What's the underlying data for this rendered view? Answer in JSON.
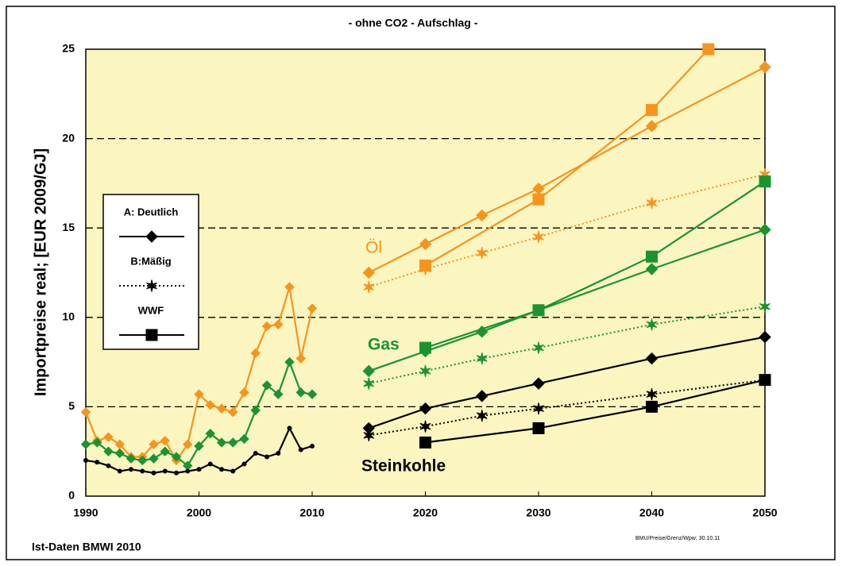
{
  "chart_data": {
    "type": "line",
    "title": "- ohne CO2 - Aufschlag -",
    "y_label": "Importpreise real; [EUR 2009/GJ]",
    "source": "Ist-Daten BMWI 2010",
    "footnote": "BMU/Preise/Grenz/Wpw; 30.10.11",
    "xlim": [
      1990,
      2050
    ],
    "ylim": [
      0,
      25
    ],
    "xticks": [
      1990,
      2000,
      2010,
      2020,
      2030,
      2040,
      2050
    ],
    "yticks": [
      0,
      5,
      10,
      15,
      20,
      25
    ],
    "grid": true,
    "background": "#fbf5c0",
    "legend": [
      {
        "label": "A: Deutlich",
        "dash": "solid",
        "marker": "diamond"
      },
      {
        "label": "B:Mäßig",
        "dash": "dotted",
        "marker": "star"
      },
      {
        "label": "WWF",
        "dash": "solid",
        "marker": "square"
      }
    ],
    "annotations": [
      {
        "text": "Öl",
        "color": "#f7941d"
      },
      {
        "text": "Gas",
        "color": "#1a9431"
      },
      {
        "text": "Steinkohle",
        "color": "#000000"
      }
    ],
    "series": [
      {
        "color": "#f7941d",
        "dash": "solid",
        "marker": "diamond-small",
        "x": [
          1990,
          1991,
          1992,
          1993,
          1994,
          1995,
          1996,
          1997,
          1998,
          1999,
          2000,
          2001,
          2002,
          2003,
          2004,
          2005,
          2006,
          2007,
          2008,
          2009,
          2010
        ],
        "values": [
          4.7,
          3.1,
          3.3,
          2.9,
          2.2,
          2.2,
          2.9,
          3.1,
          2.0,
          2.9,
          5.7,
          5.1,
          4.9,
          4.7,
          5.8,
          8.0,
          9.5,
          9.6,
          11.7,
          7.7,
          10.5
        ]
      },
      {
        "color": "#1a9431",
        "dash": "solid",
        "marker": "diamond-small",
        "x": [
          1990,
          1991,
          1992,
          1993,
          1994,
          1995,
          1996,
          1997,
          1998,
          1999,
          2000,
          2001,
          2002,
          2003,
          2004,
          2005,
          2006,
          2007,
          2008,
          2009,
          2010
        ],
        "values": [
          2.9,
          3.0,
          2.5,
          2.4,
          2.1,
          2.0,
          2.1,
          2.5,
          2.2,
          1.7,
          2.8,
          3.5,
          3.0,
          3.0,
          3.2,
          4.8,
          6.2,
          5.7,
          7.5,
          5.8,
          5.7
        ]
      },
      {
        "color": "#000000",
        "dash": "solid",
        "marker": "dot",
        "x": [
          1990,
          1991,
          1992,
          1993,
          1994,
          1995,
          1996,
          1997,
          1998,
          1999,
          2000,
          2001,
          2002,
          2003,
          2004,
          2005,
          2006,
          2007,
          2008,
          2009,
          2010
        ],
        "values": [
          2.0,
          1.9,
          1.7,
          1.4,
          1.5,
          1.4,
          1.3,
          1.4,
          1.3,
          1.4,
          1.5,
          1.8,
          1.5,
          1.4,
          1.8,
          2.4,
          2.2,
          2.4,
          3.8,
          2.6,
          2.8
        ]
      },
      {
        "color": "#f7941d",
        "dash": "solid",
        "marker": "diamond",
        "x": [
          2015,
          2020,
          2025,
          2030,
          2040,
          2050
        ],
        "values": [
          12.5,
          14.1,
          15.7,
          17.2,
          20.7,
          24.0
        ]
      },
      {
        "color": "#f7941d",
        "dash": "dotted",
        "marker": "star",
        "x": [
          2015,
          2020,
          2025,
          2030,
          2040,
          2050
        ],
        "values": [
          11.7,
          12.7,
          13.6,
          14.5,
          16.4,
          18.0
        ]
      },
      {
        "color": "#f7941d",
        "dash": "solid",
        "marker": "square",
        "x": [
          2020,
          2030,
          2040,
          2045
        ],
        "values": [
          12.9,
          16.6,
          21.6,
          25.0
        ]
      },
      {
        "color": "#1a9431",
        "dash": "solid",
        "marker": "diamond",
        "x": [
          2015,
          2020,
          2025,
          2030,
          2040,
          2050
        ],
        "values": [
          7.0,
          8.1,
          9.2,
          10.4,
          12.7,
          14.9
        ]
      },
      {
        "color": "#1a9431",
        "dash": "dotted",
        "marker": "star",
        "x": [
          2015,
          2020,
          2025,
          2030,
          2040,
          2050
        ],
        "values": [
          6.3,
          7.0,
          7.7,
          8.3,
          9.6,
          10.6
        ]
      },
      {
        "color": "#1a9431",
        "dash": "solid",
        "marker": "square",
        "x": [
          2020,
          2030,
          2040,
          2050
        ],
        "values": [
          8.3,
          10.4,
          13.4,
          17.6
        ]
      },
      {
        "color": "#000000",
        "dash": "solid",
        "marker": "diamond",
        "x": [
          2015,
          2020,
          2025,
          2030,
          2040,
          2050
        ],
        "values": [
          3.8,
          4.9,
          5.6,
          6.3,
          7.7,
          8.9
        ]
      },
      {
        "color": "#000000",
        "dash": "dotted",
        "marker": "star",
        "x": [
          2015,
          2020,
          2025,
          2030,
          2040,
          2050
        ],
        "values": [
          3.4,
          3.9,
          4.5,
          4.9,
          5.7,
          6.5
        ]
      },
      {
        "color": "#000000",
        "dash": "solid",
        "marker": "square",
        "x": [
          2020,
          2030,
          2040,
          2050
        ],
        "values": [
          3.0,
          3.8,
          5.0,
          6.5
        ]
      }
    ]
  }
}
